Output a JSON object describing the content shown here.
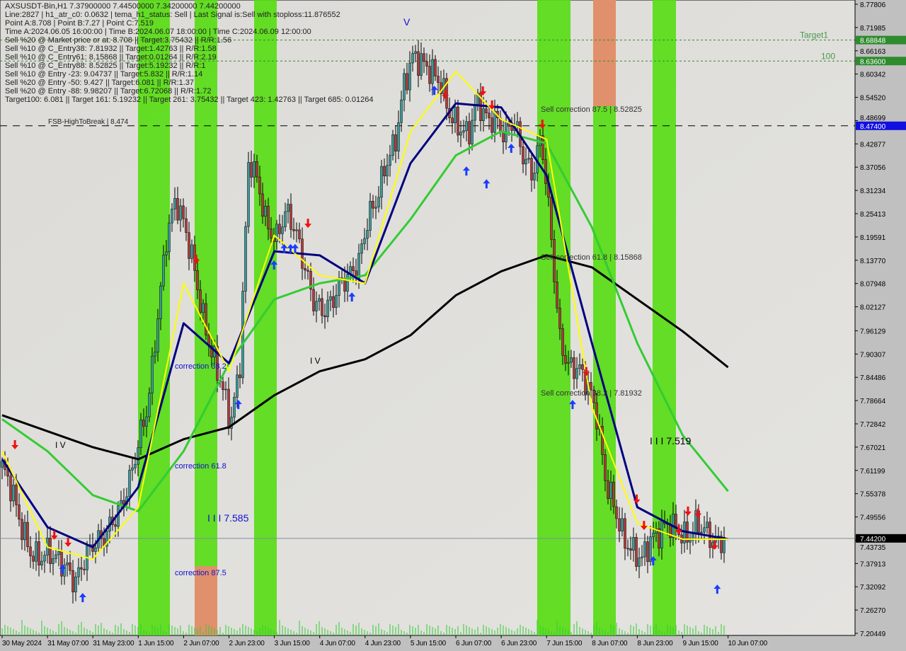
{
  "info": {
    "lines": [
      "AXSUSDT-Bin,H1  7.37900000 7.44500000 7.34200000 7.44200000",
      "Line:2827 | h1_atr_c0: 0.0632 | tema_h1_status: Sell | Last Signal is:Sell with stoploss:11.876552",
      "Point A:8.708 | Point B:7.27 | Point C:7.519",
      "Time A:2024.06.05 16:00:00 | Time B:2024.06.07 18:00:00 | Time C:2024.06.09 12:00:00",
      "Sell %20 @ Market price or at: 8.708 || Target:3.75432 || R/R:1.56",
      "Sell %10 @ C_Entry38: 7.81932 || Target:1.42763 || R/R:1.58",
      "Sell %10 @ C_Entry61: 8.15868 || Target:0.01264 || R/R:2.19",
      "Sell %10 @ C_Entry88: 8.52825 || Target:5.19232 || R/R:1",
      "Sell %10 @ Entry -23: 9.04737 || Target:5.832 || R/R:1.14",
      "Sell %20 @ Entry -50: 9.427 || Target:6.081 || R/R:1.37",
      "Sell %20 @ Entry -88: 9.98207 || Target:6.72068 || R/R:1.72",
      "Target100: 6.081 || Target 161: 5.19232 || Target 261: 3.75432 || Target 423: 1.42763 || Target 685: 0.01264"
    ]
  },
  "watermark": "MARKETZI TRADE",
  "chart_data": {
    "type": "candlestick",
    "symbol": "AXSUSDT-Bin",
    "timeframe": "H1",
    "ylim": [
      7.20449,
      8.77806
    ],
    "y_ticks": [
      "8.77806",
      "8.71985",
      "8.66163",
      "8.60342",
      "8.54520",
      "8.48699",
      "8.42877",
      "8.37056",
      "8.31234",
      "8.25413",
      "8.19591",
      "8.13770",
      "8.07948",
      "8.02127",
      "7.96129",
      "7.90307",
      "7.84486",
      "7.78664",
      "7.72842",
      "7.67021",
      "7.61199",
      "7.55378",
      "7.49556",
      "7.43735",
      "7.37913",
      "7.32092",
      "7.26270",
      "7.20449"
    ],
    "x_ticks": [
      "30 May 2024",
      "31 May 07:00",
      "31 May 23:00",
      "1 Jun 15:00",
      "2 Jun 07:00",
      "2 Jun 23:00",
      "3 Jun 15:00",
      "4 Jun 07:00",
      "4 Jun 23:00",
      "5 Jun 15:00",
      "6 Jun 07:00",
      "6 Jun 23:00",
      "7 Jun 15:00",
      "8 Jun 07:00",
      "8 Jun 23:00",
      "9 Jun 15:00",
      "10 Jun 07:00"
    ],
    "price_tags": [
      {
        "value": "8.68848",
        "color": "#2e8b2e"
      },
      {
        "value": "8.63600",
        "color": "#2e8b2e"
      },
      {
        "value": "8.47400",
        "color": "#1010e0"
      },
      {
        "value": "7.44200",
        "color": "#000000"
      }
    ],
    "close_samples": [
      7.62,
      7.57,
      7.48,
      7.41,
      7.39,
      7.41,
      7.39,
      7.37,
      7.33,
      7.39,
      7.43,
      7.44,
      7.48,
      7.52,
      7.59,
      7.69,
      7.78,
      7.99,
      8.2,
      8.29,
      8.22,
      8.12,
      7.99,
      7.9,
      7.83,
      7.73,
      7.87,
      8.4,
      8.33,
      8.22,
      8.19,
      8.26,
      8.22,
      8.13,
      8.04,
      8.01,
      8.03,
      8.08,
      8.1,
      8.13,
      8.24,
      8.29,
      8.38,
      8.43,
      8.58,
      8.65,
      8.63,
      8.61,
      8.58,
      8.5,
      8.47,
      8.45,
      8.54,
      8.49,
      8.49,
      8.45,
      8.49,
      8.4,
      8.35,
      8.45,
      8.22,
      7.94,
      7.87,
      7.87,
      7.83,
      7.76,
      7.59,
      7.52,
      7.44,
      7.41,
      7.39,
      7.44,
      7.46,
      7.48,
      7.46,
      7.44,
      7.48,
      7.46,
      7.43,
      7.44
    ],
    "moving_averages_at_ticks": [
      {
        "color": "#000000",
        "values": [
          7.75,
          7.71,
          7.67,
          7.64,
          7.69,
          7.72,
          7.8,
          7.86,
          7.89,
          7.95,
          8.05,
          8.11,
          8.15,
          8.12,
          8.04,
          7.96,
          7.87
        ]
      },
      {
        "color": "#33cc33",
        "values": [
          7.74,
          7.66,
          7.55,
          7.51,
          7.66,
          7.88,
          8.04,
          8.08,
          8.1,
          8.24,
          8.4,
          8.46,
          8.43,
          8.22,
          7.93,
          7.7,
          7.56
        ]
      },
      {
        "color": "#000080",
        "values": [
          7.64,
          7.47,
          7.42,
          7.57,
          7.98,
          7.88,
          8.16,
          8.15,
          8.08,
          8.38,
          8.53,
          8.52,
          8.35,
          7.93,
          7.52,
          7.46,
          7.44
        ]
      },
      {
        "color": "#ffff00",
        "values": [
          7.66,
          7.42,
          7.39,
          7.52,
          8.08,
          7.86,
          8.2,
          8.1,
          8.08,
          8.46,
          8.61,
          8.49,
          8.44,
          7.77,
          7.48,
          7.44,
          7.44
        ]
      }
    ],
    "buy_arrows": [
      [
        6.6,
        7.364
      ],
      [
        8.8,
        7.293
      ],
      [
        25.8,
        7.776
      ],
      [
        29.7,
        8.125
      ],
      [
        30.8,
        8.166
      ],
      [
        31.5,
        8.166
      ],
      [
        32,
        8.166
      ],
      [
        38.2,
        8.045
      ],
      [
        47.2,
        8.562
      ],
      [
        50.7,
        8.36
      ],
      [
        52.9,
        8.328
      ],
      [
        55.6,
        8.417
      ],
      [
        62.3,
        7.776
      ],
      [
        71.1,
        7.385
      ],
      [
        78.1,
        7.314
      ]
    ],
    "sell_arrows": [
      [
        1.4,
        7.677
      ],
      [
        5.7,
        7.451
      ],
      [
        7.2,
        7.433
      ],
      [
        21.2,
        8.141
      ],
      [
        33.4,
        8.231
      ],
      [
        48.4,
        8.553
      ],
      [
        52.5,
        8.562
      ],
      [
        53.5,
        8.527
      ],
      [
        59,
        8.479
      ],
      [
        63.8,
        7.86
      ],
      [
        69.3,
        7.541
      ],
      [
        70.1,
        7.475
      ],
      [
        73.9,
        7.465
      ],
      [
        74.9,
        7.511
      ],
      [
        76,
        7.506
      ],
      [
        77.8,
        7.426
      ]
    ],
    "levels": [
      {
        "price": 8.474,
        "label": "FSB-HighToBreak | 8.474",
        "style": "dash",
        "color": "#000000"
      },
      {
        "price": 8.68848,
        "label": "Target1",
        "style": "dot",
        "color": "#2e8b2e"
      },
      {
        "price": 8.636,
        "label": "100",
        "style": "dot",
        "color": "#2e8b2e"
      },
      {
        "price": 7.442,
        "label": "",
        "style": "solid",
        "color": "#8090a0"
      }
    ],
    "annotations": [
      {
        "text": "correction 38.2",
        "color": "#1010d0"
      },
      {
        "text": "correction 61.8",
        "color": "#1010d0"
      },
      {
        "text": "correction 87.5",
        "color": "#1010d0"
      },
      {
        "text": "I I I 7.585",
        "color": "#1010d0"
      },
      {
        "text": "Sell correction 87.5 | 8.52825",
        "color": "#333"
      },
      {
        "text": "Sell correction 61.8 | 8.15868",
        "color": "#333"
      },
      {
        "text": "Sell correction 38.2 | 7.81932",
        "color": "#333"
      },
      {
        "text": "I I I 7.519",
        "color": "#000"
      },
      {
        "text": "V",
        "color": "#1010d0"
      },
      {
        "text": "I V",
        "color": "#000"
      },
      {
        "text": "I V",
        "color": "#000"
      }
    ]
  }
}
